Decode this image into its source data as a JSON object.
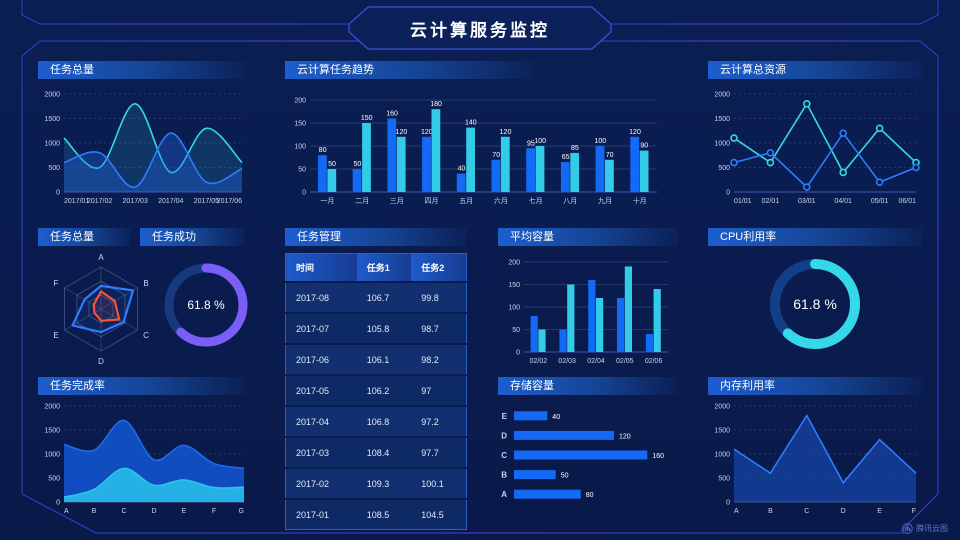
{
  "header": {
    "title": "云计算服务监控"
  },
  "watermark": {
    "label": "腾讯云图"
  },
  "panels": {
    "tasks_total": {
      "title": "任务总量"
    },
    "task_trend": {
      "title": "云计算任务趋势"
    },
    "cloud_resources": {
      "title": "云计算总资源"
    },
    "tasks_radar": {
      "title": "任务总量"
    },
    "task_success": {
      "title": "任务成功"
    },
    "task_management": {
      "title": "任务管理"
    },
    "avg_capacity": {
      "title": "平均容量"
    },
    "cpu_usage": {
      "title": "CPU利用率"
    },
    "task_completion": {
      "title": "任务完成率"
    },
    "storage_capacity": {
      "title": "存储容量"
    },
    "memory_usage": {
      "title": "内存利用率"
    }
  },
  "table": {
    "columns": [
      "时间",
      "任务1",
      "任务2"
    ],
    "rows": [
      [
        "2017-08",
        "106.7",
        "99.8"
      ],
      [
        "2017-07",
        "105.8",
        "98.7"
      ],
      [
        "2017-06",
        "106.1",
        "98.2"
      ],
      [
        "2017-05",
        "106.2",
        "97"
      ],
      [
        "2017-04",
        "106.8",
        "97.2"
      ],
      [
        "2017-03",
        "108.4",
        "97.7"
      ],
      [
        "2017-02",
        "109.3",
        "100.1"
      ],
      [
        "2017-01",
        "108.5",
        "104.5"
      ]
    ]
  },
  "colors": {
    "background": "#0a1c4e",
    "frame_line": "#3348dc",
    "blue": "#156af5",
    "cyan": "#32cbe8",
    "purple": "#7b5df8"
  },
  "chart_data": [
    {
      "id": "tasks_total_line",
      "title": "任务总量",
      "type": "area",
      "smooth": true,
      "grid": "dashed",
      "x": [
        "2017/01",
        "2017/02",
        "2017/03",
        "2017/04",
        "2017/05",
        "2017/06"
      ],
      "ylim": [
        0,
        2000
      ],
      "yticks": [
        0,
        500,
        1000,
        1500,
        2000
      ],
      "series": [
        {
          "name": "series-cyan",
          "color": "#35d8e8",
          "fill": "rgba(53,216,232,0.14)",
          "values": [
            1100,
            500,
            1800,
            400,
            1300,
            600
          ]
        },
        {
          "name": "series-blue",
          "color": "#2f7bff",
          "fill": "rgba(34,100,230,0.35)",
          "values": [
            600,
            800,
            100,
            1200,
            200,
            480
          ]
        }
      ]
    },
    {
      "id": "task_trend",
      "title": "云计算任务趋势",
      "type": "bar",
      "labels": true,
      "categories": [
        "一月",
        "二月",
        "三月",
        "四月",
        "五月",
        "六月",
        "七月",
        "八月",
        "九月",
        "十月"
      ],
      "ylim": [
        0,
        200
      ],
      "yticks": [
        0,
        50,
        100,
        150,
        200
      ],
      "series": [
        {
          "name": "任务1",
          "color": "#156af5",
          "values": [
            80,
            50,
            160,
            120,
            40,
            70,
            95,
            65,
            100,
            120
          ]
        },
        {
          "name": "任务2",
          "color": "#32cbe8",
          "values": [
            50,
            150,
            120,
            180,
            140,
            120,
            100,
            85,
            70,
            90
          ]
        }
      ]
    },
    {
      "id": "cloud_resources",
      "title": "云计算总资源",
      "type": "line",
      "markers": true,
      "grid": "dashed",
      "x": [
        "01/01",
        "02/01",
        "03/01",
        "04/01",
        "05/01",
        "06/01"
      ],
      "ylim": [
        0,
        2000
      ],
      "yticks": [
        0,
        500,
        1000,
        1500,
        2000
      ],
      "series": [
        {
          "name": "series-cyan",
          "color": "#35d8e8",
          "values": [
            1100,
            600,
            1800,
            400,
            1300,
            600
          ]
        },
        {
          "name": "series-blue",
          "color": "#2f7bff",
          "values": [
            600,
            800,
            100,
            1200,
            200,
            500
          ]
        }
      ]
    },
    {
      "id": "tasks_radar",
      "title": "任务总量",
      "type": "radar",
      "axes": [
        "A",
        "B",
        "C",
        "D",
        "E",
        "F"
      ],
      "scale": [
        0,
        1
      ],
      "series": [
        {
          "name": "outer-blue",
          "color": "#2f7bff",
          "fill": "rgba(47,123,255,0.08)",
          "values": [
            0.55,
            0.88,
            0.62,
            0.55,
            0.78,
            0.45
          ]
        },
        {
          "name": "inner-red",
          "color": "#f5533a",
          "fill": "rgba(245,83,58,0.1)",
          "values": [
            0.42,
            0.38,
            0.5,
            0.28,
            0.18,
            0.2
          ]
        }
      ]
    },
    {
      "id": "task_success",
      "title": "任务成功",
      "type": "donut",
      "value": 61.8,
      "label": "61.8 %",
      "color": "#7b5df8",
      "track": "#17397e"
    },
    {
      "id": "avg_capacity",
      "title": "平均容量",
      "type": "bar",
      "labels": false,
      "categories": [
        "02/02",
        "02/03",
        "02/04",
        "02/05",
        "02/06"
      ],
      "ylim": [
        0,
        200
      ],
      "yticks": [
        0,
        50,
        100,
        150,
        200
      ],
      "series": [
        {
          "name": "series-blue",
          "color": "#156af5",
          "values": [
            80,
            50,
            160,
            120,
            40
          ]
        },
        {
          "name": "series-cyan",
          "color": "#32cbe8",
          "values": [
            50,
            150,
            120,
            190,
            140
          ]
        }
      ]
    },
    {
      "id": "cpu_usage",
      "title": "CPU利用率",
      "type": "donut",
      "value": 61.8,
      "label": "61.8 %",
      "color": "#35d8e8",
      "track": "#123f85"
    },
    {
      "id": "task_completion",
      "title": "任务完成率",
      "type": "area",
      "smooth": true,
      "grid": "dashed",
      "x": [
        "A",
        "B",
        "C",
        "D",
        "E",
        "F",
        "G"
      ],
      "ylim": [
        0,
        2000
      ],
      "yticks": [
        0,
        500,
        1000,
        1500,
        2000
      ],
      "series": [
        {
          "name": "total-blue",
          "color": "#1f6ae8",
          "fill": "rgba(18,86,212,0.85)",
          "values": [
            1200,
            1080,
            1700,
            880,
            1180,
            800,
            700
          ]
        },
        {
          "name": "part-cyan",
          "color": "#2fc3ea",
          "fill": "rgba(39,182,232,0.95)",
          "values": [
            100,
            260,
            700,
            350,
            460,
            300,
            310
          ]
        }
      ]
    },
    {
      "id": "storage_capacity",
      "title": "存储容量",
      "type": "hbar",
      "color": "#156af5",
      "labels": true,
      "xmax": 168,
      "categories": [
        "A",
        "B",
        "C",
        "D",
        "E"
      ],
      "values": [
        80,
        50,
        160,
        120,
        40
      ]
    },
    {
      "id": "memory_usage",
      "title": "内存利用率",
      "type": "line",
      "smooth": false,
      "grid": "dashed",
      "x": [
        "A",
        "B",
        "C",
        "D",
        "E",
        "F"
      ],
      "ylim": [
        0,
        2000
      ],
      "yticks": [
        0,
        500,
        1000,
        1500,
        2000
      ],
      "series": [
        {
          "name": "series-blue",
          "color": "#2f7bff",
          "fill": "rgba(26,88,210,0.5)",
          "values": [
            1100,
            600,
            1800,
            400,
            1300,
            600
          ]
        }
      ]
    }
  ]
}
